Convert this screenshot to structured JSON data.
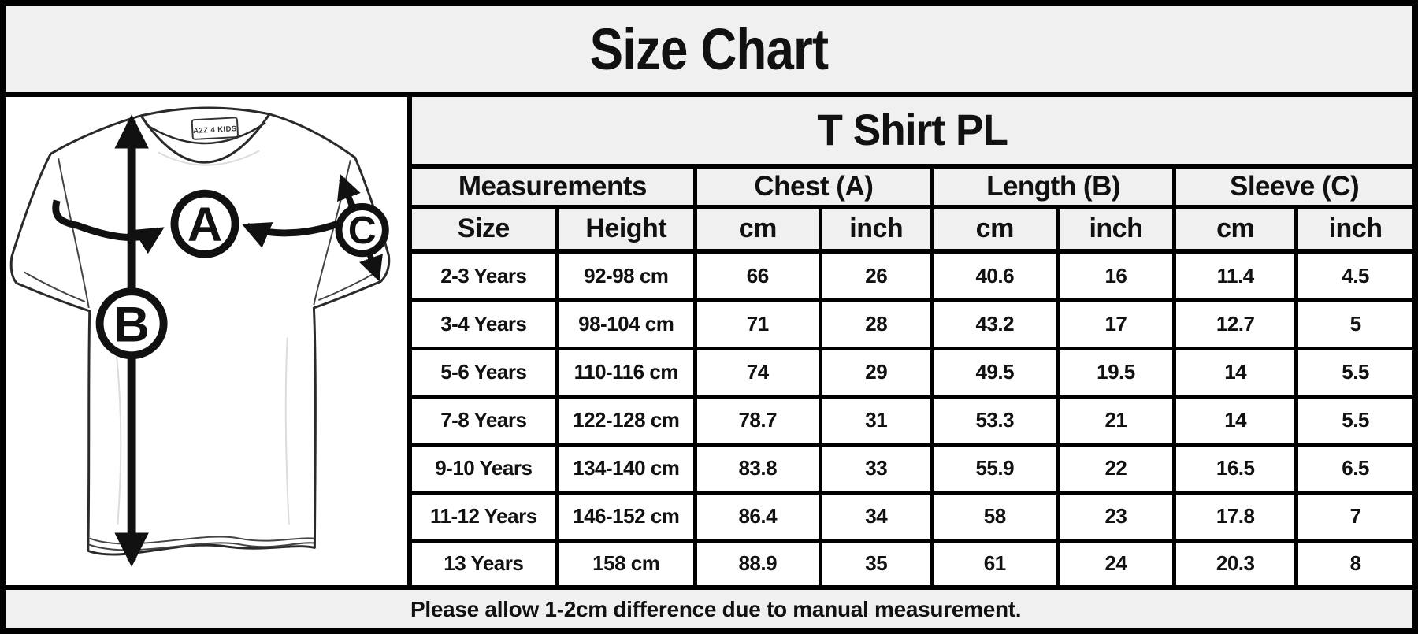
{
  "title": "Size Chart",
  "table": {
    "product_header": "T Shirt PL",
    "group_headers": [
      "Measurements",
      "Chest (A)",
      "Length (B)",
      "Sleeve (C)"
    ],
    "sub_headers": [
      "Size",
      "Height",
      "cm",
      "inch",
      "cm",
      "inch",
      "cm",
      "inch"
    ],
    "column_keys": [
      "size",
      "height",
      "chest-cm",
      "chest-inch",
      "length-cm",
      "length-inch",
      "sleeve-cm",
      "sleeve-inch"
    ],
    "rows": [
      [
        "2-3 Years",
        "92-98 cm",
        "66",
        "26",
        "40.6",
        "16",
        "11.4",
        "4.5"
      ],
      [
        "3-4 Years",
        "98-104 cm",
        "71",
        "28",
        "43.2",
        "17",
        "12.7",
        "5"
      ],
      [
        "5-6 Years",
        "110-116 cm",
        "74",
        "29",
        "49.5",
        "19.5",
        "14",
        "5.5"
      ],
      [
        "7-8 Years",
        "122-128 cm",
        "78.7",
        "31",
        "53.3",
        "21",
        "14",
        "5.5"
      ],
      [
        "9-10 Years",
        "134-140 cm",
        "83.8",
        "33",
        "55.9",
        "22",
        "16.5",
        "6.5"
      ],
      [
        "11-12 Years",
        "146-152 cm",
        "86.4",
        "34",
        "58",
        "23",
        "17.8",
        "7"
      ],
      [
        "13 Years",
        "158 cm",
        "88.9",
        "35",
        "61",
        "24",
        "20.3",
        "8"
      ]
    ]
  },
  "footer_note": "Please allow 1-2cm difference due to manual measurement.",
  "diagram": {
    "labels": {
      "chest": "A",
      "length": "B",
      "sleeve": "C"
    },
    "collar_tag": "A2Z 4 KIDS"
  },
  "colors": {
    "band_bg": "#f0f0f0",
    "cell_bg": "#ffffff",
    "border": "#000000",
    "ink": "#111111"
  },
  "chart_data": {
    "type": "table",
    "title": "Size Chart",
    "subtitle": "T Shirt PL",
    "column_groups": [
      "Measurements",
      "Chest (A)",
      "Length (B)",
      "Sleeve (C)"
    ],
    "columns": [
      "Size",
      "Height",
      "Chest (A) cm",
      "Chest (A) inch",
      "Length (B) cm",
      "Length (B) inch",
      "Sleeve (C) cm",
      "Sleeve (C) inch"
    ],
    "rows": [
      [
        "2-3 Years",
        "92-98 cm",
        66,
        26,
        40.6,
        16,
        11.4,
        4.5
      ],
      [
        "3-4 Years",
        "98-104 cm",
        71,
        28,
        43.2,
        17,
        12.7,
        5
      ],
      [
        "5-6 Years",
        "110-116 cm",
        74,
        29,
        49.5,
        19.5,
        14,
        5.5
      ],
      [
        "7-8 Years",
        "122-128 cm",
        78.7,
        31,
        53.3,
        21,
        14,
        5.5
      ],
      [
        "9-10 Years",
        "134-140 cm",
        83.8,
        33,
        55.9,
        22,
        16.5,
        6.5
      ],
      [
        "11-12 Years",
        "146-152 cm",
        86.4,
        34,
        58,
        23,
        17.8,
        7
      ],
      [
        "13 Years",
        "158 cm",
        88.9,
        35,
        61,
        24,
        20.3,
        8
      ]
    ],
    "note": "Please allow 1-2cm difference due to manual measurement."
  }
}
